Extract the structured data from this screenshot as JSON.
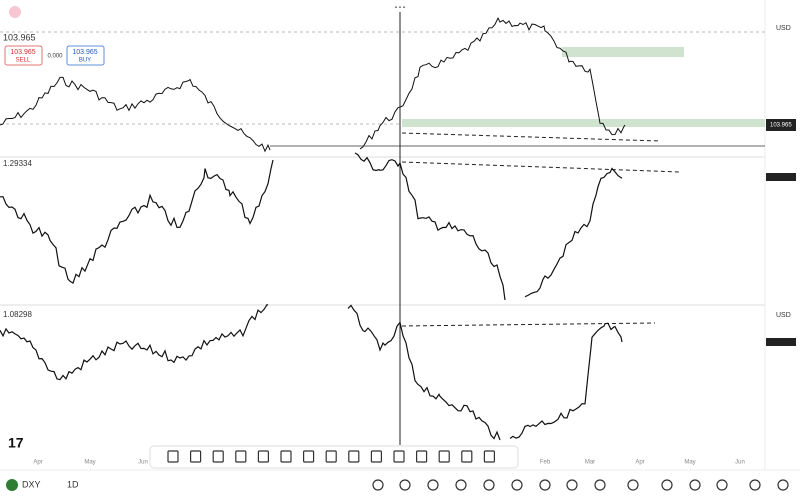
{
  "header": {
    "symbol_price": "103.965",
    "sell_price": "103.965",
    "sell": "SELL",
    "spread": "0.000",
    "buy_price": "103.965",
    "buy": "BUY"
  },
  "panes": [
    {
      "currency": "USD",
      "price_label": "103.965"
    },
    {
      "title": "1.29334"
    },
    {
      "title": "1.08298",
      "currency": "USD"
    }
  ],
  "x_axis": {
    "months": [
      "Apr",
      "May",
      "Jun",
      "Feb",
      "Mar",
      "Apr",
      "May",
      "Jun"
    ]
  },
  "bottom_bar": {
    "symbol": "DXY",
    "interval": "1D"
  }
}
